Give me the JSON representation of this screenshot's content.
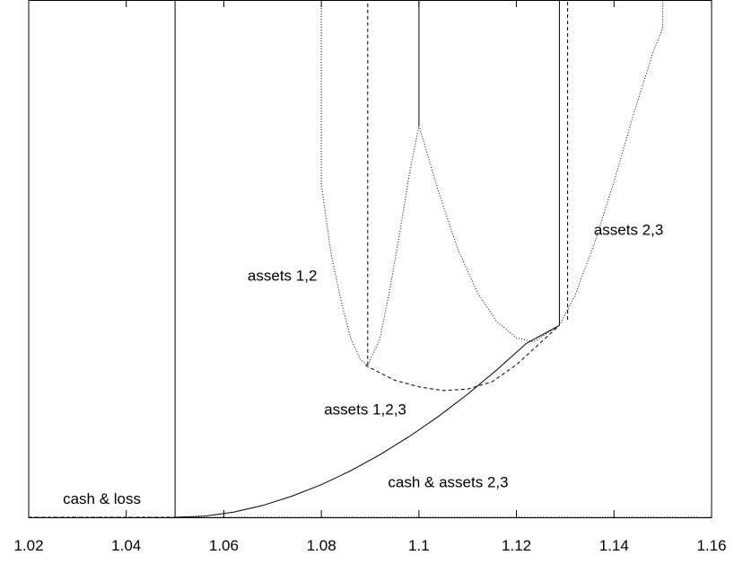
{
  "chart_data": {
    "type": "line",
    "title": "",
    "xlabel": "",
    "ylabel": "",
    "xlim": [
      1.02,
      1.16
    ],
    "ylim": [
      0,
      1
    ],
    "y_ticks_shown": false,
    "grid": false,
    "legend": "none",
    "x_ticks": [
      {
        "value": 1.02,
        "label": "1.02"
      },
      {
        "value": 1.04,
        "label": "1.04"
      },
      {
        "value": 1.06,
        "label": "1.06"
      },
      {
        "value": 1.08,
        "label": "1.08"
      },
      {
        "value": 1.1,
        "label": "1.1"
      },
      {
        "value": 1.12,
        "label": "1.12"
      },
      {
        "value": 1.14,
        "label": "1.14"
      },
      {
        "value": 1.16,
        "label": "1.16"
      }
    ],
    "series": [
      {
        "style": "solid",
        "color": "#000000",
        "x": [
          1.05,
          1.056,
          1.062,
          1.068,
          1.074,
          1.08,
          1.086,
          1.092,
          1.098,
          1.104,
          1.11,
          1.116,
          1.122,
          1.1288
        ],
        "y": [
          0.0,
          0.002,
          0.01,
          0.023,
          0.041,
          0.063,
          0.09,
          0.121,
          0.156,
          0.195,
          0.238,
          0.285,
          0.336,
          0.371
        ]
      },
      {
        "style": "solid",
        "color": "#000000",
        "x": [
          1.05,
          1.05
        ],
        "y": [
          0.0,
          1.0
        ]
      },
      {
        "style": "solid",
        "color": "#000000",
        "x": [
          1.1288,
          1.1288
        ],
        "y": [
          0.371,
          1.0
        ]
      },
      {
        "style": "solid",
        "color": "#000000",
        "x": [
          1.1,
          1.1
        ],
        "y": [
          0.757,
          1.0
        ]
      },
      {
        "style": "dashed",
        "color": "#000000",
        "x": [
          1.02,
          1.05
        ],
        "y": [
          0.0,
          0.0
        ]
      },
      {
        "style": "dashed",
        "color": "#000000",
        "x": [
          1.089,
          1.095,
          1.1,
          1.105,
          1.11,
          1.115,
          1.12,
          1.1288
        ],
        "y": [
          0.294,
          0.265,
          0.252,
          0.245,
          0.248,
          0.262,
          0.295,
          0.371
        ]
      },
      {
        "style": "dashed",
        "color": "#000000",
        "x": [
          1.0895,
          1.0895
        ],
        "y": [
          0.294,
          1.0
        ]
      },
      {
        "style": "dashed",
        "color": "#000000",
        "x": [
          1.1305,
          1.1305
        ],
        "y": [
          0.382,
          1.0
        ]
      },
      {
        "style": "dotted",
        "color": "#000000",
        "x": [
          1.02,
          1.16
        ],
        "y": [
          0.0,
          0.0
        ]
      },
      {
        "style": "dotted",
        "color": "#000000",
        "x": [
          1.08,
          1.08,
          1.082,
          1.084,
          1.086,
          1.088,
          1.0895,
          1.092,
          1.094,
          1.096,
          1.098,
          1.1
        ],
        "y": [
          1.0,
          0.644,
          0.509,
          0.42,
          0.346,
          0.305,
          0.294,
          0.345,
          0.438,
          0.546,
          0.661,
          0.757
        ]
      },
      {
        "style": "dotted",
        "color": "#000000",
        "x": [
          1.1,
          1.104,
          1.108,
          1.112,
          1.116,
          1.12,
          1.1235,
          1.1288
        ],
        "y": [
          0.757,
          0.63,
          0.518,
          0.434,
          0.378,
          0.347,
          0.339,
          0.371
        ]
      },
      {
        "style": "dotted",
        "color": "#000000",
        "x": [
          1.1288,
          1.132,
          1.136,
          1.14,
          1.144,
          1.148,
          1.15,
          1.15
        ],
        "y": [
          0.371,
          0.429,
          0.53,
          0.649,
          0.779,
          0.899,
          0.946,
          1.0
        ]
      }
    ],
    "annotations": [
      {
        "text": "assets 1,2",
        "x": 1.072,
        "y": 0.465
      },
      {
        "text": "assets 2,3",
        "x": 1.143,
        "y": 0.554
      },
      {
        "text": "assets 1,2,3",
        "x": 1.089,
        "y": 0.207
      },
      {
        "text": "cash & assets 2,3",
        "x": 1.106,
        "y": 0.066
      },
      {
        "text": "cash & loss",
        "x": 1.035,
        "y": 0.034
      }
    ]
  }
}
